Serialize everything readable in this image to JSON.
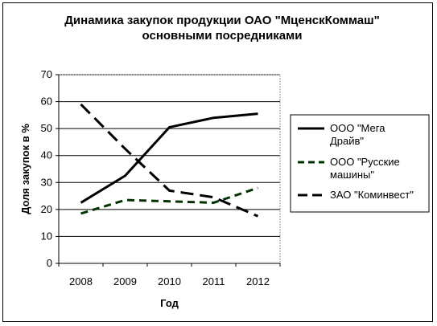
{
  "chart_data": {
    "type": "line",
    "title_line1": "Динамика закупок продукции ОАО \"МценскКоммаш\"",
    "title_line2": "основными посредниками",
    "xlabel": "Год",
    "ylabel": "Доля закупок в %",
    "categories": [
      "2008",
      "2009",
      "2010",
      "2011",
      "2012"
    ],
    "ylim": [
      0,
      70
    ],
    "yticks": [
      "0",
      "10",
      "20",
      "30",
      "40",
      "50",
      "60",
      "70"
    ],
    "grid": true,
    "legend_position": "right",
    "series": [
      {
        "name_lines": [
          "ООО \"Мега",
          "Драйв\""
        ],
        "values": [
          22.5,
          32.5,
          50.5,
          54,
          55.5
        ],
        "color": "#000000",
        "dash": "solid"
      },
      {
        "name_lines": [
          "ООО \"Русские",
          "машины\""
        ],
        "values": [
          18.5,
          23.5,
          23,
          22.5,
          28
        ],
        "color": "#003300",
        "dash": "dashed"
      },
      {
        "name_lines": [
          "ЗАО \"Коминвест\""
        ],
        "values": [
          59,
          42.5,
          27,
          24.5,
          17.5
        ],
        "color": "#000000",
        "dash": "longdash"
      }
    ]
  }
}
